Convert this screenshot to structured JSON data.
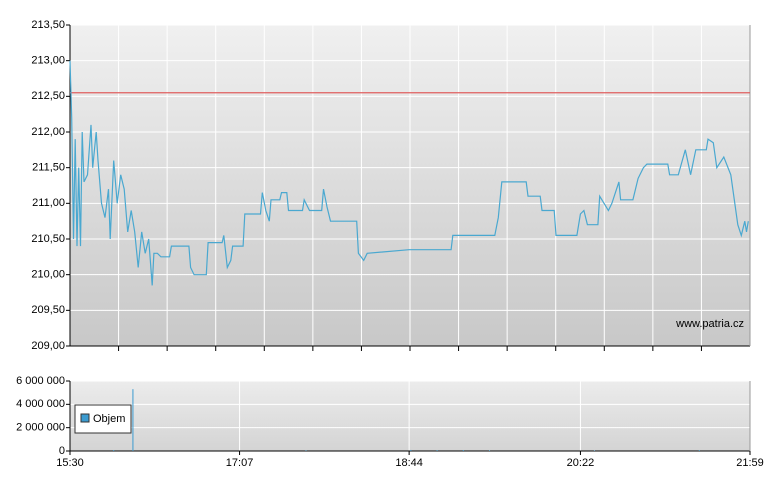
{
  "chart_data": [
    {
      "type": "line",
      "annotation": "www.patria.cz",
      "xlim": [
        "15:30",
        "21:59"
      ],
      "ylim": [
        209,
        213.5
      ],
      "yticks": [
        {
          "value": 209,
          "label": "209,00"
        },
        {
          "value": 209.5,
          "label": "209,50"
        },
        {
          "value": 210,
          "label": "210,00"
        },
        {
          "value": 210.5,
          "label": "210,50"
        },
        {
          "value": 211,
          "label": "211,00"
        },
        {
          "value": 211.5,
          "label": "211,50"
        },
        {
          "value": 212,
          "label": "212,00"
        },
        {
          "value": 212.5,
          "label": "212,50"
        },
        {
          "value": 213,
          "label": "213,00"
        },
        {
          "value": 213.5,
          "label": "213,50"
        }
      ],
      "reference_line": {
        "value": 212.55,
        "color": "#e06060"
      },
      "color": "#4aa8d0",
      "grid": true,
      "x": [
        "15:30",
        "15:31",
        "15:32",
        "15:33",
        "15:34",
        "15:35",
        "15:36",
        "15:37",
        "15:38",
        "15:40",
        "15:42",
        "15:43",
        "15:45",
        "15:46",
        "15:48",
        "15:50",
        "15:52",
        "15:53",
        "15:55",
        "15:57",
        "15:59",
        "16:01",
        "16:03",
        "16:05",
        "16:07",
        "16:09",
        "16:11",
        "16:13",
        "16:15",
        "16:17",
        "16:18",
        "16:20",
        "16:22",
        "16:27",
        "16:28",
        "16:38",
        "16:39",
        "16:41",
        "16:48",
        "16:49",
        "16:57",
        "16:58",
        "17:00",
        "17:02",
        "17:03",
        "17:09",
        "17:10",
        "17:19",
        "17:20",
        "17:22",
        "17:24",
        "17:25",
        "17:30",
        "17:31",
        "17:34",
        "17:35",
        "17:43",
        "17:44",
        "17:47",
        "17:54",
        "17:55",
        "17:57",
        "17:59",
        "18:14",
        "18:15",
        "18:18",
        "18:20",
        "18:44",
        "19:08",
        "19:09",
        "19:33",
        "19:35",
        "19:37",
        "19:51",
        "19:52",
        "19:59",
        "20:00",
        "20:07",
        "20:08",
        "20:20",
        "20:22",
        "20:24",
        "20:26",
        "20:32",
        "20:33",
        "20:38",
        "20:40",
        "20:44",
        "20:45",
        "20:52",
        "20:55",
        "20:58",
        "21:00",
        "21:12",
        "21:13",
        "21:18",
        "21:22",
        "21:25",
        "21:28",
        "21:34",
        "21:35",
        "21:38",
        "21:40",
        "21:44",
        "21:48",
        "21:52",
        "21:54",
        "21:56",
        "21:57",
        "21:58"
      ],
      "values": [
        213.0,
        212.2,
        210.5,
        211.9,
        210.4,
        211.5,
        210.4,
        212.0,
        211.3,
        211.4,
        212.1,
        211.5,
        212.0,
        211.6,
        211.0,
        210.8,
        211.2,
        210.5,
        211.6,
        211.0,
        211.4,
        211.2,
        210.6,
        210.9,
        210.6,
        210.1,
        210.6,
        210.3,
        210.5,
        209.85,
        210.3,
        210.3,
        210.25,
        210.25,
        210.4,
        210.4,
        210.1,
        210.0,
        210.0,
        210.45,
        210.45,
        210.55,
        210.1,
        210.2,
        210.4,
        210.4,
        210.85,
        210.85,
        211.15,
        210.9,
        210.75,
        211.05,
        211.05,
        211.15,
        211.15,
        210.9,
        210.9,
        211.05,
        210.9,
        210.9,
        211.2,
        210.95,
        210.75,
        210.75,
        210.3,
        210.2,
        210.3,
        210.35,
        210.35,
        210.55,
        210.55,
        210.8,
        211.3,
        211.3,
        211.1,
        211.1,
        210.9,
        210.9,
        210.55,
        210.55,
        210.85,
        210.9,
        210.7,
        210.7,
        211.1,
        210.9,
        211.0,
        211.3,
        211.05,
        211.05,
        211.35,
        211.5,
        211.55,
        211.55,
        211.4,
        211.4,
        211.75,
        211.4,
        211.75,
        211.75,
        211.9,
        211.85,
        211.5,
        211.65,
        211.4,
        210.7,
        210.55,
        210.75,
        210.6,
        210.75
      ]
    },
    {
      "type": "bar",
      "xlim": [
        "15:30",
        "21:59"
      ],
      "xticks": [
        "15:30",
        "17:07",
        "18:44",
        "20:22",
        "21:59"
      ],
      "ylim": [
        0,
        6000000
      ],
      "yticks": [
        {
          "value": 0,
          "label": "0"
        },
        {
          "value": 2000000,
          "label": "2 000 000"
        },
        {
          "value": 4000000,
          "label": "4 000 000"
        },
        {
          "value": 6000000,
          "label": "6 000 000"
        }
      ],
      "grid": true,
      "x": [
        "15:55",
        "16:06",
        "17:45",
        "18:45",
        "19:00",
        "19:15",
        "19:30",
        "20:30",
        "21:30"
      ],
      "series": [
        {
          "name": "Objem",
          "color": "#3b9bd0",
          "values": [
            80000,
            5300000,
            60000,
            90000,
            70000,
            80000,
            60000,
            50000,
            70000
          ]
        }
      ]
    }
  ]
}
